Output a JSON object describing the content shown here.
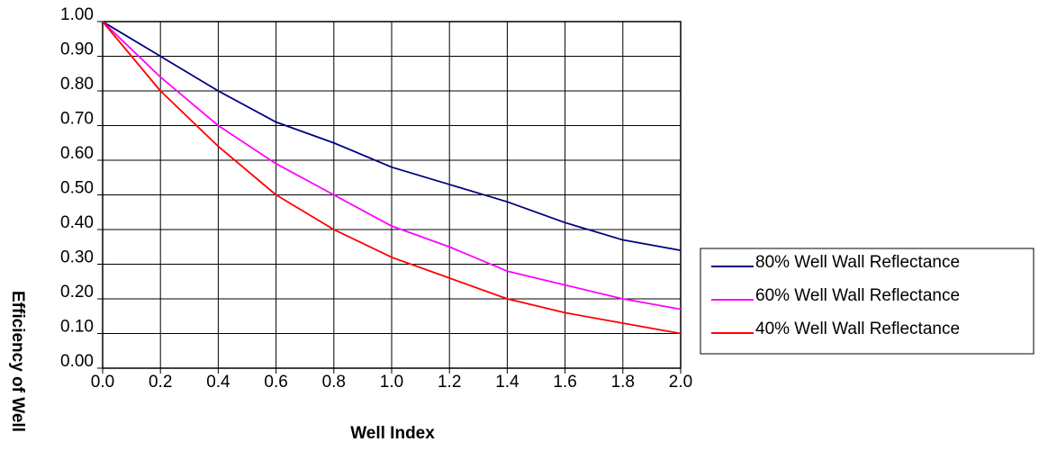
{
  "chart_data": {
    "type": "line",
    "title": "",
    "xlabel": "Well Index",
    "ylabel": "Efficiency of Well",
    "x": [
      0.0,
      0.2,
      0.4,
      0.6,
      0.8,
      1.0,
      1.2,
      1.4,
      1.6,
      1.8,
      2.0
    ],
    "xticks": [
      "0.0",
      "0.2",
      "0.4",
      "0.6",
      "0.8",
      "1.0",
      "1.2",
      "1.4",
      "1.6",
      "1.8",
      "2.0"
    ],
    "yticks": [
      "0.00",
      "0.10",
      "0.20",
      "0.30",
      "0.40",
      "0.50",
      "0.60",
      "0.70",
      "0.80",
      "0.90",
      "1.00"
    ],
    "xlim": [
      0,
      2
    ],
    "ylim": [
      0,
      1
    ],
    "grid": true,
    "legend_position": "right",
    "series": [
      {
        "name": "80% Well Wall Reflectance",
        "color": "#000080",
        "values": [
          1.0,
          0.9,
          0.8,
          0.71,
          0.65,
          0.58,
          0.53,
          0.48,
          0.42,
          0.37,
          0.34
        ]
      },
      {
        "name": "60% Well Wall Reflectance",
        "color": "#ff00ff",
        "values": [
          1.0,
          0.84,
          0.7,
          0.59,
          0.5,
          0.41,
          0.35,
          0.28,
          0.24,
          0.2,
          0.17
        ]
      },
      {
        "name": "40% Well Wall Reflectance",
        "color": "#ff0000",
        "values": [
          1.0,
          0.8,
          0.64,
          0.5,
          0.4,
          0.32,
          0.26,
          0.2,
          0.16,
          0.13,
          0.1
        ]
      }
    ]
  }
}
